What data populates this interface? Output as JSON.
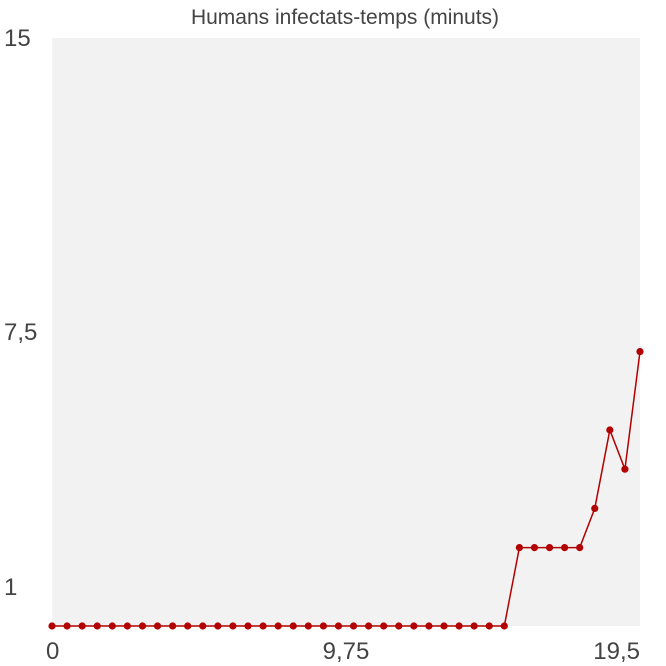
{
  "chart_data": {
    "type": "line",
    "title": "Humans infectats-temps (minuts)",
    "xlabel": "",
    "ylabel": "",
    "xlim": [
      0,
      19.5
    ],
    "ylim": [
      0,
      15
    ],
    "x_ticks": [
      {
        "value": 0,
        "label": "0"
      },
      {
        "value": 9.75,
        "label": "9,75"
      },
      {
        "value": 19.5,
        "label": "19,5"
      }
    ],
    "y_ticks": [
      {
        "value": 1,
        "label": "1"
      },
      {
        "value": 7.5,
        "label": "7,5"
      },
      {
        "value": 15,
        "label": "15"
      }
    ],
    "grid": false,
    "plot_background": "#f2f2f2",
    "series": [
      {
        "color": "#b30000",
        "points": [
          {
            "x": 0.0,
            "y": 0
          },
          {
            "x": 0.5,
            "y": 0
          },
          {
            "x": 1.0,
            "y": 0
          },
          {
            "x": 1.5,
            "y": 0
          },
          {
            "x": 2.0,
            "y": 0
          },
          {
            "x": 2.5,
            "y": 0
          },
          {
            "x": 3.0,
            "y": 0
          },
          {
            "x": 3.5,
            "y": 0
          },
          {
            "x": 4.0,
            "y": 0
          },
          {
            "x": 4.5,
            "y": 0
          },
          {
            "x": 5.0,
            "y": 0
          },
          {
            "x": 5.5,
            "y": 0
          },
          {
            "x": 6.0,
            "y": 0
          },
          {
            "x": 6.5,
            "y": 0
          },
          {
            "x": 7.0,
            "y": 0
          },
          {
            "x": 7.5,
            "y": 0
          },
          {
            "x": 8.0,
            "y": 0
          },
          {
            "x": 8.5,
            "y": 0
          },
          {
            "x": 9.0,
            "y": 0
          },
          {
            "x": 9.5,
            "y": 0
          },
          {
            "x": 10.0,
            "y": 0
          },
          {
            "x": 10.5,
            "y": 0
          },
          {
            "x": 11.0,
            "y": 0
          },
          {
            "x": 11.5,
            "y": 0
          },
          {
            "x": 12.0,
            "y": 0
          },
          {
            "x": 12.5,
            "y": 0
          },
          {
            "x": 13.0,
            "y": 0
          },
          {
            "x": 13.5,
            "y": 0
          },
          {
            "x": 14.0,
            "y": 0
          },
          {
            "x": 14.5,
            "y": 0
          },
          {
            "x": 15.0,
            "y": 0
          },
          {
            "x": 15.5,
            "y": 2
          },
          {
            "x": 16.0,
            "y": 2
          },
          {
            "x": 16.5,
            "y": 2
          },
          {
            "x": 17.0,
            "y": 2
          },
          {
            "x": 17.5,
            "y": 2
          },
          {
            "x": 18.0,
            "y": 3
          },
          {
            "x": 18.5,
            "y": 5
          },
          {
            "x": 19.0,
            "y": 4
          },
          {
            "x": 19.5,
            "y": 7
          }
        ]
      }
    ]
  }
}
